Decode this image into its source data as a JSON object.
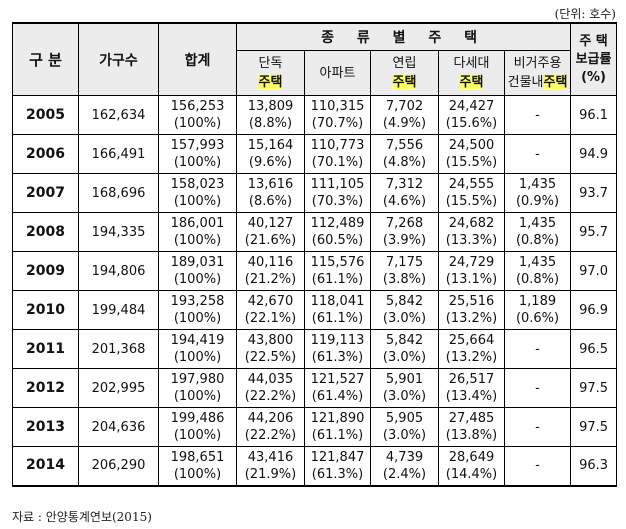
{
  "unit_note": "(단위: 호수)",
  "header": {
    "division": "구 분",
    "households": "가구수",
    "total": "합계",
    "housing_types": "종 류 별 주 택",
    "detached": {
      "top": "단독",
      "bottom": "주택"
    },
    "apartment": "아파트",
    "row_house": {
      "top": "연립",
      "bottom": "주택"
    },
    "multi_household": {
      "top": "다세대",
      "bottom": "주택"
    },
    "non_residential": {
      "top": "비거주용",
      "bottom_prefix": "건물내",
      "bottom_hl": "주택"
    },
    "supply_rate": {
      "line1": "주 택",
      "line2": "보급률",
      "line3": "(%)"
    }
  },
  "rows": [
    {
      "year": "2005",
      "households": "162,634",
      "total": "156,253",
      "total_pct": "(100%)",
      "detached": "13,809",
      "detached_pct": "(8.8%)",
      "apartment": "110,315",
      "apartment_pct": "(70.7%)",
      "row_house": "7,702",
      "row_house_pct": "(4.9%)",
      "multi": "24,427",
      "multi_pct": "(15.6%)",
      "nonres": "-",
      "nonres_pct": "",
      "rate": "96.1"
    },
    {
      "year": "2006",
      "households": "166,491",
      "total": "157,993",
      "total_pct": "(100%)",
      "detached": "15,164",
      "detached_pct": "(9.6%)",
      "apartment": "110,773",
      "apartment_pct": "(70.1%)",
      "row_house": "7,556",
      "row_house_pct": "(4.8%)",
      "multi": "24,500",
      "multi_pct": "(15.5%)",
      "nonres": "-",
      "nonres_pct": "",
      "rate": "94.9"
    },
    {
      "year": "2007",
      "households": "168,696",
      "total": "158,023",
      "total_pct": "(100%)",
      "detached": "13,616",
      "detached_pct": "(8.6%)",
      "apartment": "111,105",
      "apartment_pct": "(70.3%)",
      "row_house": "7,312",
      "row_house_pct": "(4.6%)",
      "multi": "24,555",
      "multi_pct": "(15.5%)",
      "nonres": "1,435",
      "nonres_pct": "(0.9%)",
      "rate": "93.7"
    },
    {
      "year": "2008",
      "households": "194,335",
      "total": "186,001",
      "total_pct": "(100%)",
      "detached": "40,127",
      "detached_pct": "(21.6%)",
      "apartment": "112,489",
      "apartment_pct": "(60.5%)",
      "row_house": "7,268",
      "row_house_pct": "(3.9%)",
      "multi": "24,682",
      "multi_pct": "(13.3%)",
      "nonres": "1,435",
      "nonres_pct": "(0.8%)",
      "rate": "95.7"
    },
    {
      "year": "2009",
      "households": "194,806",
      "total": "189,031",
      "total_pct": "(100%)",
      "detached": "40,116",
      "detached_pct": "(21.2%)",
      "apartment": "115,576",
      "apartment_pct": "(61.1%)",
      "row_house": "7,175",
      "row_house_pct": "(3.8%)",
      "multi": "24,729",
      "multi_pct": "(13.1%)",
      "nonres": "1,435",
      "nonres_pct": "(0.8%)",
      "rate": "97.0"
    },
    {
      "year": "2010",
      "households": "199,484",
      "total": "193,258",
      "total_pct": "(100%)",
      "detached": "42,670",
      "detached_pct": "(22.1%)",
      "apartment": "118,041",
      "apartment_pct": "(61.1%)",
      "row_house": "5,842",
      "row_house_pct": "(3.0%)",
      "multi": "25,516",
      "multi_pct": "(13.2%)",
      "nonres": "1,189",
      "nonres_pct": "(0.6%)",
      "rate": "96.9"
    },
    {
      "year": "2011",
      "households": "201,368",
      "total": "194,419",
      "total_pct": "(100%)",
      "detached": "43,800",
      "detached_pct": "(22.5%)",
      "apartment": "119,113",
      "apartment_pct": "(61.3%)",
      "row_house": "5,842",
      "row_house_pct": "(3.0%)",
      "multi": "25,664",
      "multi_pct": "(13.2%)",
      "nonres": "-",
      "nonres_pct": "",
      "rate": "96.5"
    },
    {
      "year": "2012",
      "households": "202,995",
      "total": "197,980",
      "total_pct": "(100%)",
      "detached": "44,035",
      "detached_pct": "(22.2%)",
      "apartment": "121,527",
      "apartment_pct": "(61.4%)",
      "row_house": "5,901",
      "row_house_pct": "(3.0%)",
      "multi": "26,517",
      "multi_pct": "(13.4%)",
      "nonres": "-",
      "nonres_pct": "",
      "rate": "97.5"
    },
    {
      "year": "2013",
      "households": "204,636",
      "total": "199,486",
      "total_pct": "(100%)",
      "detached": "44,206",
      "detached_pct": "(22.2%)",
      "apartment": "121,890",
      "apartment_pct": "(61.1%)",
      "row_house": "5,905",
      "row_house_pct": "(3.0%)",
      "multi": "27,485",
      "multi_pct": "(13.8%)",
      "nonres": "-",
      "nonres_pct": "",
      "rate": "97.5"
    },
    {
      "year": "2014",
      "households": "206,290",
      "total": "198,651",
      "total_pct": "(100%)",
      "detached": "43,416",
      "detached_pct": "(21.9%)",
      "apartment": "121,847",
      "apartment_pct": "(61.3%)",
      "row_house": "4,739",
      "row_house_pct": "(2.4%)",
      "multi": "28,649",
      "multi_pct": "(14.4%)",
      "nonres": "-",
      "nonres_pct": "",
      "rate": "96.3"
    }
  ],
  "source": "자료 : 안양통계연보(2015)",
  "colors": {
    "highlight": "#ffff66",
    "header_bg": "#ececec"
  }
}
